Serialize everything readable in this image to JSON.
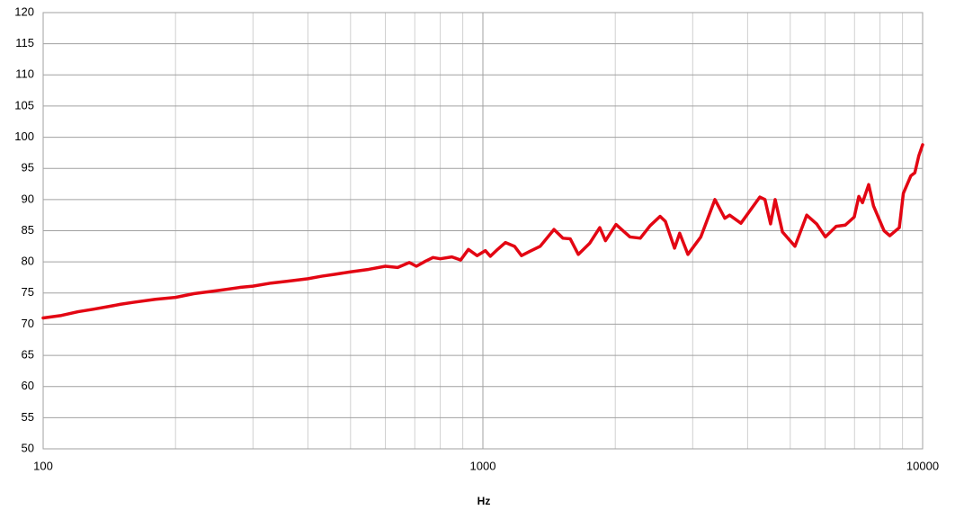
{
  "chart_data": {
    "type": "line",
    "x_label": "Hz",
    "x_scale": "log",
    "grid": true,
    "xlim": [
      100,
      10000
    ],
    "xticks": [
      100,
      1000,
      10000
    ],
    "ylim": [
      50,
      120
    ],
    "yticks": [
      50,
      55,
      60,
      65,
      70,
      75,
      80,
      85,
      90,
      95,
      100,
      105,
      110,
      115,
      120
    ],
    "x": [
      100,
      110,
      120,
      130,
      140,
      150,
      160,
      180,
      200,
      220,
      250,
      280,
      300,
      330,
      360,
      400,
      430,
      460,
      500,
      550,
      600,
      640,
      680,
      706,
      740,
      770,
      800,
      850,
      890,
      927,
      970,
      1013,
      1040,
      1080,
      1125,
      1180,
      1224,
      1280,
      1350,
      1451,
      1520,
      1580,
      1648,
      1750,
      1844,
      1900,
      2008,
      2160,
      2280,
      2400,
      2529,
      2600,
      2728,
      2802,
      2926,
      3130,
      3370,
      3550,
      3640,
      3862,
      4263,
      4380,
      4510,
      4620,
      4800,
      5125,
      5450,
      5740,
      6010,
      6360,
      6670,
      6990,
      7160,
      7300,
      7540,
      7730,
      8170,
      8420,
      8850,
      9040,
      9400,
      9600,
      9800,
      10000
    ],
    "series": [
      {
        "color": "#e30613",
        "values": [
          71,
          71.4,
          72,
          72.4,
          72.8,
          73.2,
          73.5,
          74,
          74.3,
          74.9,
          75.4,
          75.9,
          76.1,
          76.6,
          76.9,
          77.3,
          77.7,
          78,
          78.4,
          78.8,
          79.3,
          79.1,
          79.9,
          79.3,
          80.1,
          80.7,
          80.5,
          80.8,
          80.3,
          82,
          81,
          81.8,
          80.9,
          82,
          83.1,
          82.5,
          81,
          81.7,
          82.5,
          85.2,
          83.8,
          83.7,
          81.2,
          83,
          85.5,
          83.4,
          86,
          84,
          83.8,
          85.8,
          87.3,
          86.5,
          82.2,
          84.6,
          81.2,
          84,
          90,
          87,
          87.5,
          86.2,
          90.4,
          90,
          86.1,
          90,
          84.8,
          82.5,
          87.5,
          86.1,
          84,
          85.7,
          85.9,
          87.2,
          90.5,
          89.5,
          92.4,
          89,
          85,
          84.2,
          85.5,
          91,
          93.8,
          94.3,
          97,
          98.8
        ]
      }
    ]
  }
}
